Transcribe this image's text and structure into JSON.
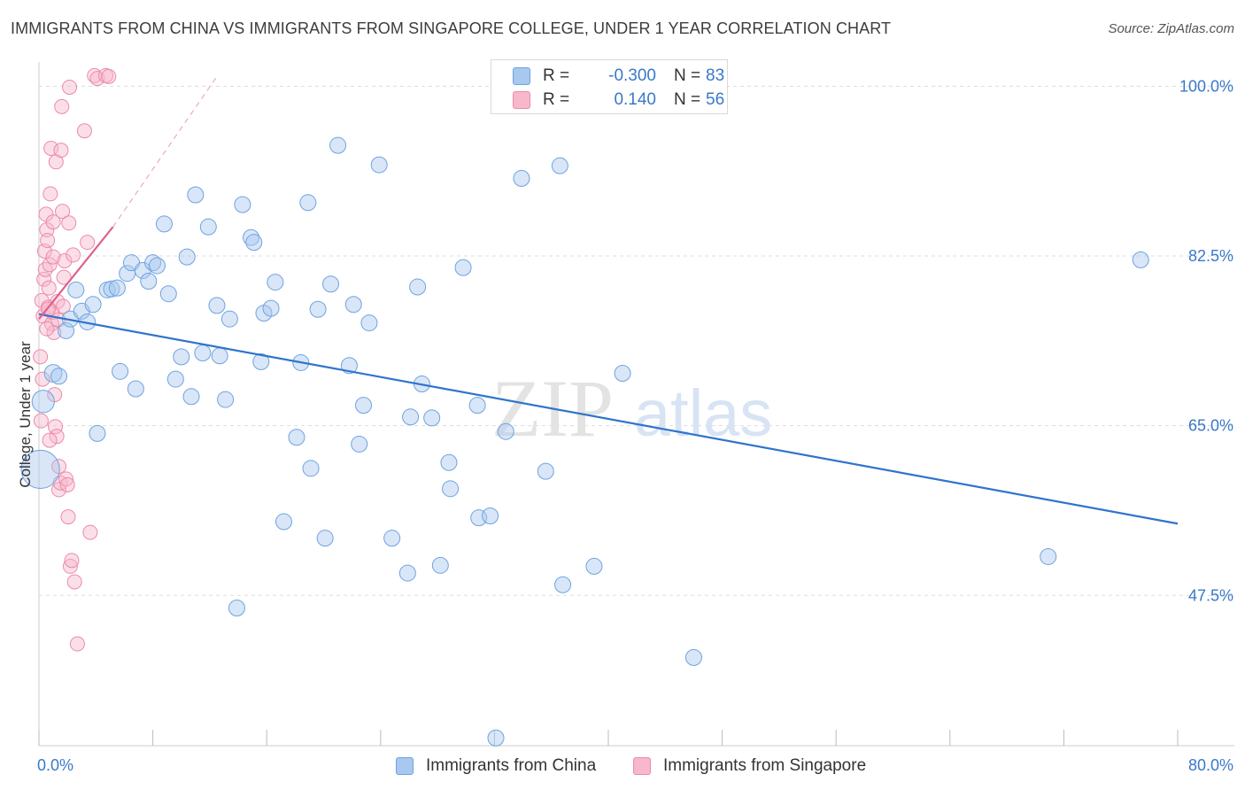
{
  "title": "IMMIGRANTS FROM CHINA VS IMMIGRANTS FROM SINGAPORE COLLEGE, UNDER 1 YEAR CORRELATION CHART",
  "source": "Source: ZipAtlas.com",
  "watermark": {
    "zip": "ZIP",
    "atlas": "atlas"
  },
  "legend_top": {
    "rows": [
      {
        "r_label": "R =",
        "r_value": "-0.300",
        "n_label": "N =",
        "n_value": "83",
        "color": "#a8c8f0",
        "border": "#6fa3df"
      },
      {
        "r_label": "R =",
        "r_value": "0.140",
        "n_label": "N =",
        "n_value": "56",
        "color": "#f7b8cc",
        "border": "#ec8aa9"
      }
    ]
  },
  "legend_bottom": [
    {
      "label": "Immigrants from China",
      "color": "#a8c8f0",
      "border": "#6fa3df"
    },
    {
      "label": "Immigrants from Singapore",
      "color": "#f7b8cc",
      "border": "#ec8aa9"
    }
  ],
  "colors": {
    "china_fill": "rgba(168,200,240,0.45)",
    "china_stroke": "#6fa3df",
    "china_line": "#2f74cc",
    "singapore_fill": "rgba(247,184,204,0.45)",
    "singapore_stroke": "#ec8aa9",
    "singapore_line": "#e0608a",
    "tick_label": "#3a78c9",
    "grid": "#dddddd"
  },
  "chart_data": {
    "type": "scatter",
    "title": "IMMIGRANTS FROM CHINA VS IMMIGRANTS FROM SINGAPORE COLLEGE, UNDER 1 YEAR CORRELATION CHART",
    "xlabel": "",
    "ylabel": "College, Under 1 year",
    "xlim": [
      0,
      80
    ],
    "ylim": [
      32,
      102.5
    ],
    "x_tick_labels": [
      "0.0%",
      "80.0%"
    ],
    "y_ticks": [
      47.5,
      65.0,
      82.5,
      100.0
    ],
    "y_tick_labels": [
      "47.5%",
      "65.0%",
      "82.5%",
      "100.0%"
    ],
    "grid": true,
    "legend": "bottom",
    "series": [
      {
        "name": "Immigrants from China",
        "r": -0.3,
        "n": 83,
        "trend": {
          "x": [
            0,
            80
          ],
          "y": [
            76.5,
            54.9
          ]
        },
        "points": [
          {
            "x": 0.1,
            "y": 60.5,
            "s": 2.4
          },
          {
            "x": 0.3,
            "y": 67.5,
            "s": 1.4
          },
          {
            "x": 1.0,
            "y": 70.4,
            "s": 1.1
          },
          {
            "x": 1.4,
            "y": 70.1,
            "s": 1.0
          },
          {
            "x": 1.9,
            "y": 74.8,
            "s": 1.0
          },
          {
            "x": 2.2,
            "y": 76.0,
            "s": 1.0
          },
          {
            "x": 2.6,
            "y": 79.0,
            "s": 1.0
          },
          {
            "x": 3.0,
            "y": 76.8,
            "s": 1.0
          },
          {
            "x": 3.4,
            "y": 75.7,
            "s": 1.0
          },
          {
            "x": 3.8,
            "y": 77.5,
            "s": 1.0
          },
          {
            "x": 4.1,
            "y": 64.2,
            "s": 1.0
          },
          {
            "x": 4.8,
            "y": 79.0,
            "s": 1.0
          },
          {
            "x": 5.1,
            "y": 79.1,
            "s": 1.0
          },
          {
            "x": 5.5,
            "y": 79.2,
            "s": 1.0
          },
          {
            "x": 5.7,
            "y": 70.6,
            "s": 1.0
          },
          {
            "x": 6.2,
            "y": 80.7,
            "s": 1.0
          },
          {
            "x": 6.5,
            "y": 81.8,
            "s": 1.0
          },
          {
            "x": 6.8,
            "y": 68.8,
            "s": 1.0
          },
          {
            "x": 7.3,
            "y": 81.0,
            "s": 1.0
          },
          {
            "x": 7.7,
            "y": 79.9,
            "s": 1.0
          },
          {
            "x": 8.0,
            "y": 81.8,
            "s": 1.0
          },
          {
            "x": 8.3,
            "y": 81.5,
            "s": 1.0
          },
          {
            "x": 8.8,
            "y": 85.8,
            "s": 1.0
          },
          {
            "x": 9.1,
            "y": 78.6,
            "s": 1.0
          },
          {
            "x": 9.6,
            "y": 69.8,
            "s": 1.0
          },
          {
            "x": 10.0,
            "y": 72.1,
            "s": 1.0
          },
          {
            "x": 10.4,
            "y": 82.4,
            "s": 1.0
          },
          {
            "x": 10.7,
            "y": 68.0,
            "s": 1.0
          },
          {
            "x": 11.0,
            "y": 88.8,
            "s": 1.0
          },
          {
            "x": 11.5,
            "y": 72.5,
            "s": 1.0
          },
          {
            "x": 11.9,
            "y": 85.5,
            "s": 1.0
          },
          {
            "x": 12.5,
            "y": 77.4,
            "s": 1.0
          },
          {
            "x": 12.7,
            "y": 72.2,
            "s": 1.0
          },
          {
            "x": 13.1,
            "y": 67.7,
            "s": 1.0
          },
          {
            "x": 13.4,
            "y": 76.0,
            "s": 1.0
          },
          {
            "x": 13.9,
            "y": 46.2,
            "s": 1.0
          },
          {
            "x": 14.3,
            "y": 87.8,
            "s": 1.0
          },
          {
            "x": 14.9,
            "y": 84.4,
            "s": 1.0
          },
          {
            "x": 15.1,
            "y": 83.9,
            "s": 1.0
          },
          {
            "x": 15.6,
            "y": 71.6,
            "s": 1.0
          },
          {
            "x": 15.8,
            "y": 76.6,
            "s": 1.0
          },
          {
            "x": 16.3,
            "y": 77.1,
            "s": 1.0
          },
          {
            "x": 16.6,
            "y": 79.8,
            "s": 1.0
          },
          {
            "x": 17.2,
            "y": 55.1,
            "s": 1.0
          },
          {
            "x": 18.1,
            "y": 63.8,
            "s": 1.0
          },
          {
            "x": 18.4,
            "y": 71.5,
            "s": 1.0
          },
          {
            "x": 18.9,
            "y": 88.0,
            "s": 1.0
          },
          {
            "x": 19.1,
            "y": 60.6,
            "s": 1.0
          },
          {
            "x": 19.6,
            "y": 77.0,
            "s": 1.0
          },
          {
            "x": 20.1,
            "y": 53.4,
            "s": 1.0
          },
          {
            "x": 20.5,
            "y": 79.6,
            "s": 1.0
          },
          {
            "x": 21.0,
            "y": 93.9,
            "s": 1.0
          },
          {
            "x": 22.1,
            "y": 77.5,
            "s": 1.0
          },
          {
            "x": 21.8,
            "y": 71.2,
            "s": 1.0
          },
          {
            "x": 22.5,
            "y": 63.1,
            "s": 1.0
          },
          {
            "x": 22.8,
            "y": 67.1,
            "s": 1.0
          },
          {
            "x": 23.2,
            "y": 75.6,
            "s": 1.0
          },
          {
            "x": 23.9,
            "y": 91.9,
            "s": 1.0
          },
          {
            "x": 24.8,
            "y": 53.4,
            "s": 1.0
          },
          {
            "x": 25.9,
            "y": 49.8,
            "s": 1.0
          },
          {
            "x": 26.1,
            "y": 65.9,
            "s": 1.0
          },
          {
            "x": 26.6,
            "y": 79.3,
            "s": 1.0
          },
          {
            "x": 26.9,
            "y": 69.3,
            "s": 1.0
          },
          {
            "x": 27.6,
            "y": 65.8,
            "s": 1.0
          },
          {
            "x": 28.2,
            "y": 50.6,
            "s": 1.0
          },
          {
            "x": 28.8,
            "y": 61.2,
            "s": 1.0
          },
          {
            "x": 28.9,
            "y": 58.5,
            "s": 1.0
          },
          {
            "x": 29.8,
            "y": 81.3,
            "s": 1.0
          },
          {
            "x": 30.8,
            "y": 67.1,
            "s": 1.0
          },
          {
            "x": 30.9,
            "y": 55.5,
            "s": 1.0
          },
          {
            "x": 31.7,
            "y": 55.7,
            "s": 1.0
          },
          {
            "x": 32.1,
            "y": 32.8,
            "s": 1.0
          },
          {
            "x": 32.8,
            "y": 64.4,
            "s": 1.0
          },
          {
            "x": 33.9,
            "y": 90.5,
            "s": 1.0
          },
          {
            "x": 35.6,
            "y": 60.3,
            "s": 1.0
          },
          {
            "x": 36.6,
            "y": 91.8,
            "s": 1.0
          },
          {
            "x": 36.8,
            "y": 48.6,
            "s": 1.0
          },
          {
            "x": 39.0,
            "y": 50.5,
            "s": 1.0
          },
          {
            "x": 41.0,
            "y": 70.4,
            "s": 1.0
          },
          {
            "x": 46.0,
            "y": 41.1,
            "s": 1.0
          },
          {
            "x": 70.9,
            "y": 51.5,
            "s": 1.0
          },
          {
            "x": 77.4,
            "y": 82.1,
            "s": 1.0
          },
          {
            "x": 37.2,
            "y": 98.6,
            "s": 1.0
          }
        ]
      },
      {
        "name": "Immigrants from Singapore",
        "r": 0.14,
        "n": 56,
        "trend": {
          "x": [
            0,
            5.2
          ],
          "y": [
            76.0,
            85.5
          ]
        },
        "trend_extension": {
          "x": [
            5.2,
            12.5
          ],
          "y": [
            85.5,
            101.0
          ]
        },
        "points": [
          {
            "x": 0.1,
            "y": 72.1
          },
          {
            "x": 0.15,
            "y": 65.5
          },
          {
            "x": 0.2,
            "y": 77.9
          },
          {
            "x": 0.25,
            "y": 69.8
          },
          {
            "x": 0.3,
            "y": 76.3
          },
          {
            "x": 0.35,
            "y": 80.1
          },
          {
            "x": 0.4,
            "y": 83.0
          },
          {
            "x": 0.45,
            "y": 81.1
          },
          {
            "x": 0.5,
            "y": 86.8
          },
          {
            "x": 0.55,
            "y": 85.2
          },
          {
            "x": 0.6,
            "y": 84.1
          },
          {
            "x": 0.65,
            "y": 77.2
          },
          {
            "x": 0.7,
            "y": 79.2
          },
          {
            "x": 0.75,
            "y": 81.6
          },
          {
            "x": 0.8,
            "y": 88.9
          },
          {
            "x": 0.85,
            "y": 93.6
          },
          {
            "x": 0.9,
            "y": 75.5
          },
          {
            "x": 0.95,
            "y": 76.7
          },
          {
            "x": 1.0,
            "y": 82.4
          },
          {
            "x": 1.05,
            "y": 74.6
          },
          {
            "x": 1.1,
            "y": 68.2
          },
          {
            "x": 1.15,
            "y": 64.9
          },
          {
            "x": 1.2,
            "y": 92.2
          },
          {
            "x": 1.25,
            "y": 63.9
          },
          {
            "x": 1.3,
            "y": 77.8
          },
          {
            "x": 1.35,
            "y": 75.9
          },
          {
            "x": 1.4,
            "y": 58.4
          },
          {
            "x": 1.5,
            "y": 59.1
          },
          {
            "x": 1.55,
            "y": 93.4
          },
          {
            "x": 1.6,
            "y": 97.9
          },
          {
            "x": 1.65,
            "y": 87.1
          },
          {
            "x": 1.7,
            "y": 77.3
          },
          {
            "x": 1.75,
            "y": 80.3
          },
          {
            "x": 1.8,
            "y": 82.0
          },
          {
            "x": 1.9,
            "y": 59.5
          },
          {
            "x": 2.0,
            "y": 58.9
          },
          {
            "x": 2.05,
            "y": 55.6
          },
          {
            "x": 2.1,
            "y": 85.9
          },
          {
            "x": 2.15,
            "y": 99.9
          },
          {
            "x": 2.2,
            "y": 50.5
          },
          {
            "x": 2.3,
            "y": 51.1
          },
          {
            "x": 2.4,
            "y": 82.6
          },
          {
            "x": 2.5,
            "y": 48.9
          },
          {
            "x": 2.7,
            "y": 42.5
          },
          {
            "x": 3.2,
            "y": 95.4
          },
          {
            "x": 3.4,
            "y": 83.9
          },
          {
            "x": 3.6,
            "y": 54.0
          },
          {
            "x": 3.9,
            "y": 101.1
          },
          {
            "x": 4.1,
            "y": 100.8
          },
          {
            "x": 4.7,
            "y": 101.1
          },
          {
            "x": 4.9,
            "y": 101.0
          },
          {
            "x": 0.55,
            "y": 75.0
          },
          {
            "x": 0.65,
            "y": 77.0
          },
          {
            "x": 0.75,
            "y": 63.5
          },
          {
            "x": 1.4,
            "y": 60.8
          },
          {
            "x": 1.0,
            "y": 86.0
          }
        ]
      }
    ]
  }
}
